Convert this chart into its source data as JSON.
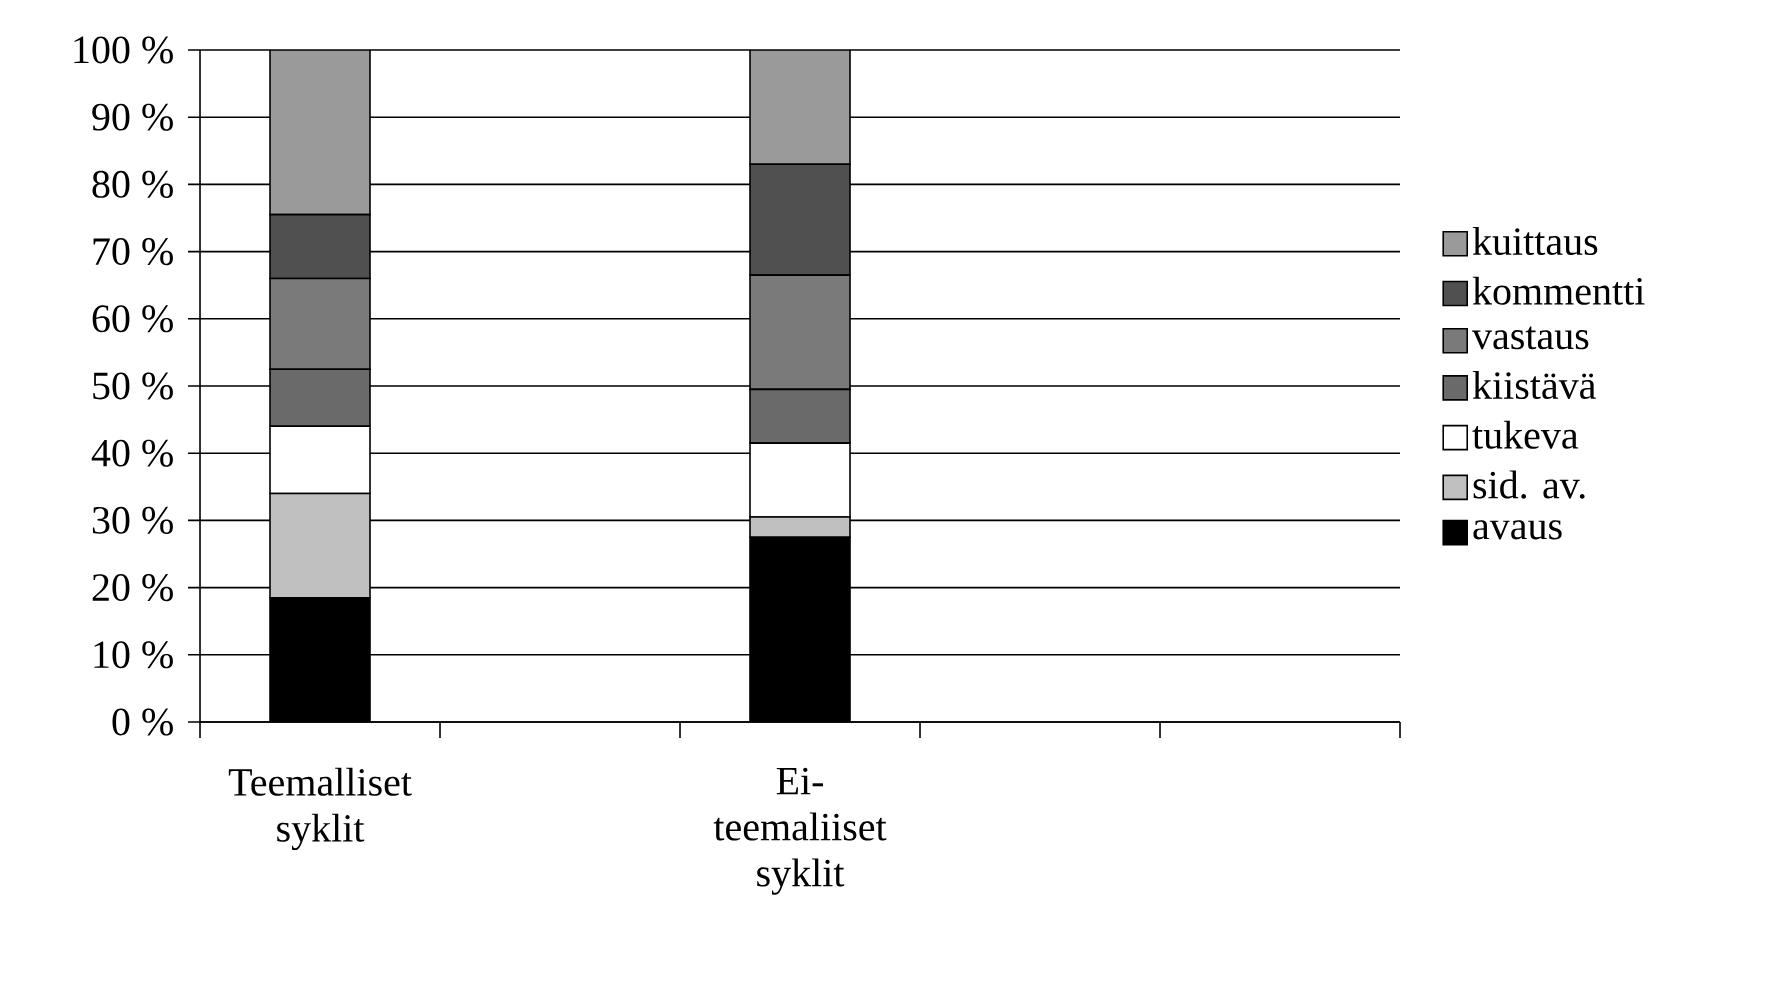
{
  "chart_data": {
    "type": "bar",
    "stacked": true,
    "categories": [
      "Teemalliset syklit",
      null,
      "Ei-teemaliiset syklit",
      null,
      null
    ],
    "series": [
      {
        "name": "avaus",
        "color": "#000000",
        "values": [
          18.5,
          null,
          27.5,
          null,
          null
        ]
      },
      {
        "name": "sid. av.",
        "color": "#c0c0c0",
        "values": [
          15.5,
          null,
          3,
          null,
          null
        ]
      },
      {
        "name": "tukeva",
        "color": "#ffffff",
        "values": [
          10,
          null,
          11,
          null,
          null
        ]
      },
      {
        "name": "kiistävä",
        "color": "#6a6a6a",
        "values": [
          8.5,
          null,
          8,
          null,
          null
        ]
      },
      {
        "name": "vastaus",
        "color": "#7a7a7a",
        "values": [
          13.5,
          null,
          17,
          null,
          null
        ]
      },
      {
        "name": "kommentti",
        "color": "#505050",
        "values": [
          9.5,
          null,
          16.5,
          null,
          null
        ]
      },
      {
        "name": "kuittaus",
        "color": "#9a9a9a",
        "values": [
          24.5,
          null,
          17,
          null,
          null
        ]
      }
    ],
    "ylim": [
      0,
      100
    ],
    "yticks": [
      {
        "value": 0,
        "label": "0 %"
      },
      {
        "value": 10,
        "label": "10 %"
      },
      {
        "value": 20,
        "label": "20 %"
      },
      {
        "value": 30,
        "label": "30 %"
      },
      {
        "value": 40,
        "label": "40 %"
      },
      {
        "value": 50,
        "label": "50 %"
      },
      {
        "value": 60,
        "label": "60 %"
      },
      {
        "value": 70,
        "label": "70 %"
      },
      {
        "value": 80,
        "label": "80 %"
      },
      {
        "value": 90,
        "label": "90 %"
      },
      {
        "value": 100,
        "label": "100 %"
      }
    ],
    "grid": "y",
    "legend": "right"
  }
}
